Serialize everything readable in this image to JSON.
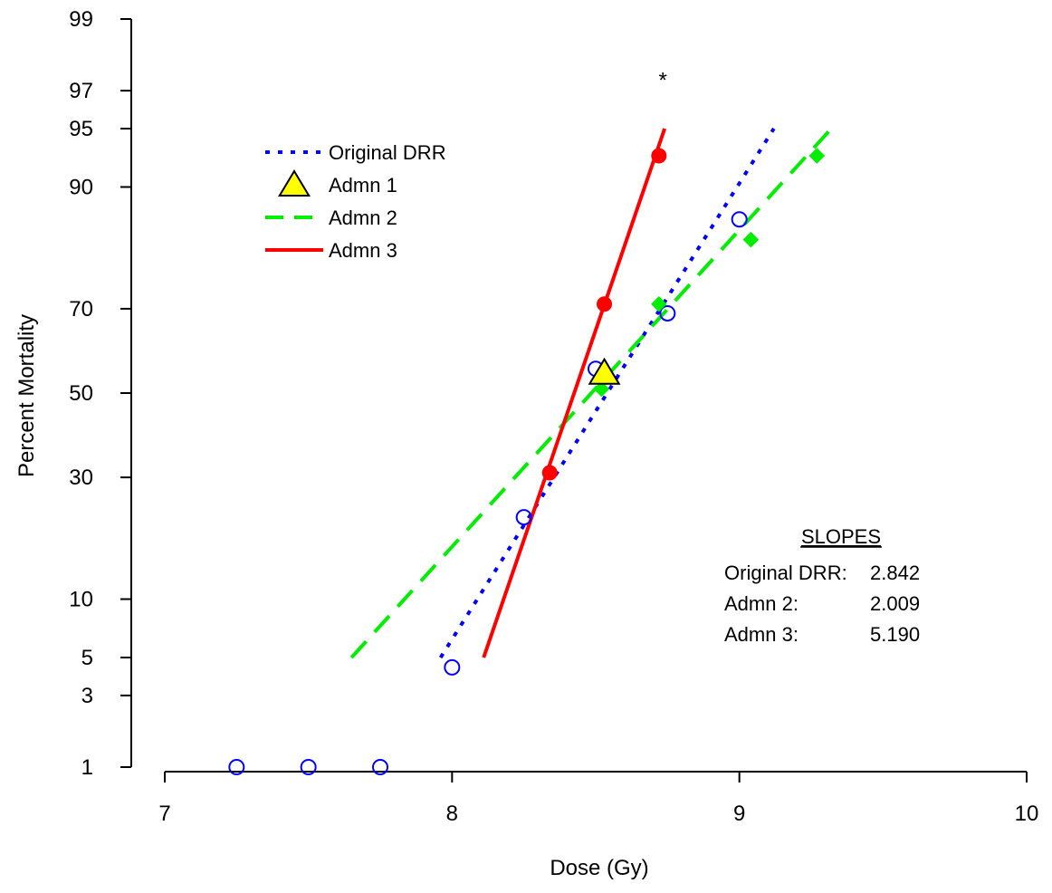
{
  "chart_data": {
    "type": "scatter",
    "xlabel": "Dose (Gy)",
    "ylabel": "Percent Mortality",
    "xlim": [
      7,
      10
    ],
    "y_scale": "probit",
    "ylim": [
      1,
      99
    ],
    "x_ticks": [
      7,
      8,
      9,
      10
    ],
    "x_tick_labels": [
      "7",
      "8",
      "9",
      "10"
    ],
    "y_ticks": [
      1,
      3,
      5,
      10,
      30,
      50,
      70,
      90,
      95,
      97,
      99
    ],
    "y_tick_labels": [
      "1",
      "3",
      "5",
      "10",
      "30",
      "50",
      "70",
      "90",
      "95",
      "97",
      "99"
    ],
    "grid": false,
    "legend_position": "top-left",
    "series": [
      {
        "name": "Original DRR",
        "color": "#0000ff",
        "line_style": "dotted",
        "marker": "open-circle",
        "points": [
          {
            "x": 7.25,
            "y": 1
          },
          {
            "x": 7.5,
            "y": 1
          },
          {
            "x": 7.75,
            "y": 1
          },
          {
            "x": 8.0,
            "y": 4.4
          },
          {
            "x": 8.25,
            "y": 22
          },
          {
            "x": 8.5,
            "y": 56
          },
          {
            "x": 8.75,
            "y": 69
          },
          {
            "x": 9.0,
            "y": 86
          }
        ],
        "fit_line": [
          {
            "x": 7.96,
            "y": 5
          },
          {
            "x": 9.12,
            "y": 95
          }
        ]
      },
      {
        "name": "Admn 1",
        "color": "#ffff00",
        "line_style": "none",
        "marker": "triangle",
        "points": [
          {
            "x": 8.53,
            "y": 55
          }
        ]
      },
      {
        "name": "Admn 2",
        "color": "#00ee00",
        "line_style": "dashed",
        "marker": "filled-diamond",
        "points": [
          {
            "x": 8.52,
            "y": 51
          },
          {
            "x": 8.72,
            "y": 71
          },
          {
            "x": 9.04,
            "y": 83
          },
          {
            "x": 9.27,
            "y": 93
          }
        ],
        "fit_line": [
          {
            "x": 7.65,
            "y": 5
          },
          {
            "x": 9.32,
            "y": 95
          }
        ]
      },
      {
        "name": "Admn 3",
        "color": "#ff0000",
        "line_style": "solid",
        "marker": "filled-circle",
        "points": [
          {
            "x": 8.34,
            "y": 31
          },
          {
            "x": 8.53,
            "y": 71
          },
          {
            "x": 8.72,
            "y": 93
          }
        ],
        "fit_line": [
          {
            "x": 8.11,
            "y": 5
          },
          {
            "x": 8.74,
            "y": 95
          }
        ]
      }
    ],
    "annotations": [
      {
        "text": "*",
        "x": 8.74,
        "y": 97.2
      }
    ],
    "slopes_box": {
      "title": "SLOPES",
      "rows": [
        {
          "label": "Original DRR:",
          "value": "2.842"
        },
        {
          "label": "Admn 2:",
          "value": "2.009"
        },
        {
          "label": "Admn 3:",
          "value": "5.190"
        }
      ]
    }
  }
}
